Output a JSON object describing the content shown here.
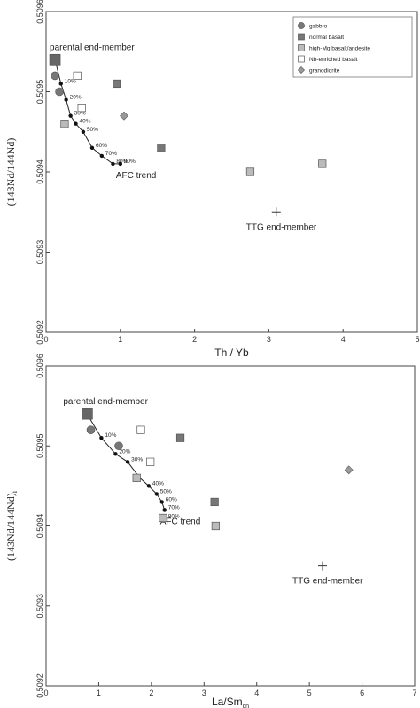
{
  "chart_data": [
    {
      "type": "scatter",
      "title": "",
      "xlabel": "Th / Yb",
      "ylabel": "(143Nd/144Nd)",
      "xlim": [
        0,
        5
      ],
      "ylim": [
        0.5092,
        0.5096
      ],
      "x_ticks": [
        "0",
        "1",
        "2",
        "3",
        "4",
        "5"
      ],
      "y_ticks": [
        "0.5092",
        "0.5093",
        "0.5094",
        "0.5095",
        "0.5096"
      ],
      "legend": {
        "position": "top-right",
        "entries": [
          {
            "label": "gabbro",
            "symbol": "circle",
            "color": "#777777"
          },
          {
            "label": "normal basalt",
            "symbol": "square",
            "color": "#777777"
          },
          {
            "label": "high-Mg basalt/andesite",
            "symbol": "square",
            "color": "#bbbbbb"
          },
          {
            "label": "Nb-enriched basalt",
            "symbol": "square",
            "color": "#ffffff"
          },
          {
            "label": "granodiorite",
            "symbol": "diamond",
            "color": "#999999"
          }
        ]
      },
      "series": [
        {
          "name": "gabbro",
          "symbol": "circle",
          "color": "#777777",
          "points": [
            [
              0.12,
              0.50952
            ],
            [
              0.18,
              0.5095
            ]
          ]
        },
        {
          "name": "normal basalt",
          "symbol": "square",
          "color": "#777777",
          "points": [
            [
              0.95,
              0.50951
            ],
            [
              1.55,
              0.50943
            ]
          ]
        },
        {
          "name": "high-Mg basalt/andesite",
          "symbol": "square",
          "color": "#bbbbbb",
          "points": [
            [
              0.25,
              0.50946
            ],
            [
              2.75,
              0.5094
            ],
            [
              3.72,
              0.50941
            ]
          ]
        },
        {
          "name": "Nb-enriched basalt",
          "symbol": "square",
          "color": "#ffffff",
          "points": [
            [
              0.42,
              0.50952
            ],
            [
              0.48,
              0.50948
            ]
          ]
        },
        {
          "name": "granodiorite",
          "symbol": "diamond",
          "color": "#999999",
          "points": [
            [
              1.05,
              0.50947
            ]
          ]
        }
      ],
      "parental_end_member": {
        "label": "parental end-member",
        "point": [
          0.12,
          0.50954
        ]
      },
      "ttg_end_member": {
        "label": "TTG end-member",
        "point": [
          3.1,
          0.50935
        ]
      },
      "afc_trend": {
        "label": "AFC trend",
        "points": [
          [
            0.12,
            0.50954
          ],
          [
            0.2,
            0.50951
          ],
          [
            0.27,
            0.50949
          ],
          [
            0.33,
            0.50947
          ],
          [
            0.4,
            0.50946
          ],
          [
            0.5,
            0.50945
          ],
          [
            0.62,
            0.50943
          ],
          [
            0.75,
            0.50942
          ],
          [
            0.9,
            0.50941
          ],
          [
            1.0,
            0.50941
          ]
        ],
        "ticks": [
          {
            "label": "10%",
            "point": [
              0.2,
              0.50951
            ]
          },
          {
            "label": "20%",
            "point": [
              0.27,
              0.50949
            ]
          },
          {
            "label": "30%",
            "point": [
              0.33,
              0.50947
            ]
          },
          {
            "label": "40%",
            "point": [
              0.4,
              0.50946
            ]
          },
          {
            "label": "50%",
            "point": [
              0.5,
              0.50945
            ]
          },
          {
            "label": "60%",
            "point": [
              0.62,
              0.50943
            ]
          },
          {
            "label": "70%",
            "point": [
              0.75,
              0.50942
            ]
          },
          {
            "label": "80%",
            "point": [
              0.9,
              0.50941
            ]
          },
          {
            "label": "90%",
            "point": [
              1.0,
              0.50941
            ]
          }
        ]
      }
    },
    {
      "type": "scatter",
      "title": "",
      "xlabel": "La/Sm",
      "xlabel_sub": "cn",
      "ylabel": "(143Nd/144Nd)",
      "ylabel_sub": "i",
      "xlim": [
        0,
        7
      ],
      "ylim": [
        0.5092,
        0.5096
      ],
      "x_ticks": [
        "0",
        "1",
        "2",
        "3",
        "4",
        "5",
        "6",
        "7"
      ],
      "y_ticks": [
        "0.5092",
        "0.5093",
        "0.5094",
        "0.5095",
        "0.5096"
      ],
      "series": [
        {
          "name": "gabbro",
          "symbol": "circle",
          "color": "#777777",
          "points": [
            [
              0.85,
              0.50952
            ],
            [
              1.38,
              0.5095
            ]
          ]
        },
        {
          "name": "normal basalt",
          "symbol": "square",
          "color": "#777777",
          "points": [
            [
              2.55,
              0.50951
            ],
            [
              3.2,
              0.50943
            ]
          ]
        },
        {
          "name": "high-Mg basalt/andesite",
          "symbol": "square",
          "color": "#bbbbbb",
          "points": [
            [
              1.72,
              0.50946
            ],
            [
              2.22,
              0.50941
            ],
            [
              3.22,
              0.5094
            ]
          ]
        },
        {
          "name": "Nb-enriched basalt",
          "symbol": "square",
          "color": "#ffffff",
          "points": [
            [
              1.8,
              0.50952
            ],
            [
              1.98,
              0.50948
            ]
          ]
        },
        {
          "name": "granodiorite",
          "symbol": "diamond",
          "color": "#999999",
          "points": [
            [
              5.75,
              0.50947
            ]
          ]
        }
      ],
      "parental_end_member": {
        "label": "parental end-member",
        "point": [
          0.78,
          0.50954
        ]
      },
      "ttg_end_member": {
        "label": "TTG end-member",
        "point": [
          5.25,
          0.50935
        ]
      },
      "afc_trend": {
        "label": "AFC trend",
        "points": [
          [
            0.78,
            0.50954
          ],
          [
            1.05,
            0.50951
          ],
          [
            1.32,
            0.50949
          ],
          [
            1.55,
            0.50948
          ],
          [
            1.78,
            0.50946
          ],
          [
            1.95,
            0.50945
          ],
          [
            2.1,
            0.50944
          ],
          [
            2.2,
            0.50943
          ],
          [
            2.25,
            0.50942
          ]
        ],
        "ticks": [
          {
            "label": "10%",
            "point": [
              1.05,
              0.50951
            ]
          },
          {
            "label": "20%",
            "point": [
              1.32,
              0.50949
            ]
          },
          {
            "label": "30%",
            "point": [
              1.55,
              0.50948
            ]
          },
          {
            "label": "40%",
            "point": [
              1.95,
              0.50945
            ]
          },
          {
            "label": "50%",
            "point": [
              2.1,
              0.50944
            ]
          },
          {
            "label": "60%",
            "point": [
              2.2,
              0.50943
            ]
          },
          {
            "label": "70%",
            "point": [
              2.25,
              0.50942
            ]
          },
          {
            "label": "80%",
            "point": [
              2.25,
              0.50942
            ]
          }
        ]
      }
    }
  ]
}
